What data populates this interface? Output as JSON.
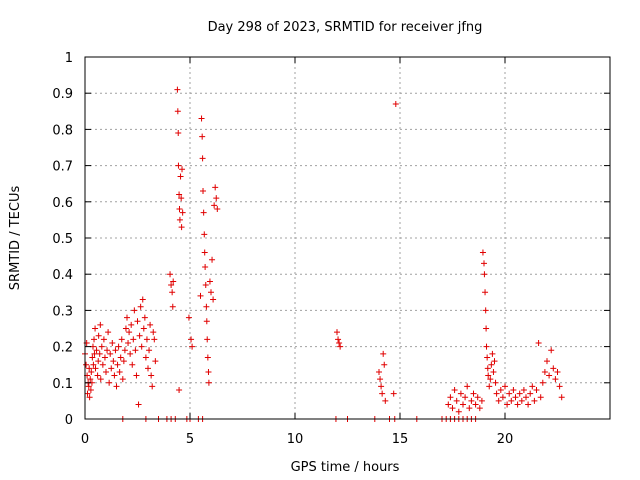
{
  "chart_data": {
    "type": "scatter",
    "title": "Day 298 of 2023, SRMTID for receiver jfng",
    "xlabel": "GPS time / hours",
    "ylabel": "SRMTID / TECUs",
    "xlim": [
      0,
      25
    ],
    "ylim": [
      0,
      1
    ],
    "x_ticks": [
      0,
      5,
      10,
      15,
      20
    ],
    "x_tick_labels": [
      "0",
      "5",
      "10",
      "15",
      "20"
    ],
    "y_ticks": [
      0,
      0.1,
      0.2,
      0.3,
      0.4,
      0.5,
      0.6,
      0.7,
      0.8,
      0.9,
      1
    ],
    "y_tick_labels": [
      "0",
      "0.1",
      "0.2",
      "0.3",
      "0.4",
      "0.5",
      "0.6",
      "0.7",
      "0.8",
      "0.9",
      "1"
    ],
    "grid": true,
    "marker": "+",
    "color": "#e00000",
    "series": [
      {
        "name": "jfng",
        "points": [
          [
            0.0,
            0.18
          ],
          [
            0.05,
            0.15
          ],
          [
            0.08,
            0.21
          ],
          [
            0.1,
            0.12
          ],
          [
            0.12,
            0.07
          ],
          [
            0.15,
            0.1
          ],
          [
            0.18,
            0.09
          ],
          [
            0.2,
            0.14
          ],
          [
            0.22,
            0.06
          ],
          [
            0.25,
            0.11
          ],
          [
            0.28,
            0.08
          ],
          [
            0.3,
            0.13
          ],
          [
            0.33,
            0.1
          ],
          [
            0.35,
            0.17
          ],
          [
            0.38,
            0.2
          ],
          [
            0.4,
            0.15
          ],
          [
            0.43,
            0.22
          ],
          [
            0.45,
            0.18
          ],
          [
            0.48,
            0.25
          ],
          [
            0.5,
            0.14
          ],
          [
            0.55,
            0.19
          ],
          [
            0.6,
            0.12
          ],
          [
            0.63,
            0.16
          ],
          [
            0.65,
            0.23
          ],
          [
            0.7,
            0.18
          ],
          [
            0.73,
            0.26
          ],
          [
            0.75,
            0.11
          ],
          [
            0.8,
            0.2
          ],
          [
            0.85,
            0.15
          ],
          [
            0.9,
            0.22
          ],
          [
            0.95,
            0.17
          ],
          [
            1.0,
            0.13
          ],
          [
            1.05,
            0.19
          ],
          [
            1.1,
            0.24
          ],
          [
            1.15,
            0.1
          ],
          [
            1.2,
            0.18
          ],
          [
            1.25,
            0.14
          ],
          [
            1.3,
            0.21
          ],
          [
            1.35,
            0.16
          ],
          [
            1.4,
            0.12
          ],
          [
            1.45,
            0.19
          ],
          [
            1.5,
            0.09
          ],
          [
            1.55,
            0.15
          ],
          [
            1.6,
            0.2
          ],
          [
            1.65,
            0.13
          ],
          [
            1.7,
            0.17
          ],
          [
            1.75,
            0.22
          ],
          [
            1.8,
            0.11
          ],
          [
            1.85,
            0.16
          ],
          [
            1.9,
            0.19
          ],
          [
            1.95,
            0.25
          ],
          [
            2.0,
            0.28
          ],
          [
            2.05,
            0.21
          ],
          [
            2.1,
            0.24
          ],
          [
            2.15,
            0.18
          ],
          [
            2.2,
            0.26
          ],
          [
            2.25,
            0.15
          ],
          [
            2.3,
            0.22
          ],
          [
            2.35,
            0.3
          ],
          [
            2.4,
            0.19
          ],
          [
            2.45,
            0.12
          ],
          [
            2.5,
            0.27
          ],
          [
            2.55,
            0.04
          ],
          [
            2.6,
            0.23
          ],
          [
            2.65,
            0.31
          ],
          [
            2.7,
            0.2
          ],
          [
            2.75,
            0.33
          ],
          [
            2.8,
            0.25
          ],
          [
            2.85,
            0.28
          ],
          [
            2.9,
            0.17
          ],
          [
            2.95,
            0.22
          ],
          [
            3.0,
            0.14
          ],
          [
            3.05,
            0.19
          ],
          [
            3.1,
            0.26
          ],
          [
            3.15,
            0.12
          ],
          [
            3.2,
            0.09
          ],
          [
            3.25,
            0.24
          ],
          [
            3.3,
            0.22
          ],
          [
            3.35,
            0.16
          ],
          [
            1.8,
            0.0
          ],
          [
            2.9,
            0.0
          ],
          [
            3.5,
            0.0
          ],
          [
            3.9,
            0.0
          ],
          [
            4.1,
            0.0
          ],
          [
            4.3,
            0.0
          ],
          [
            4.85,
            0.0
          ],
          [
            5.0,
            0.0
          ],
          [
            5.4,
            0.0
          ],
          [
            5.6,
            0.0
          ],
          [
            4.05,
            0.4
          ],
          [
            4.1,
            0.37
          ],
          [
            4.15,
            0.35
          ],
          [
            4.18,
            0.31
          ],
          [
            4.2,
            0.38
          ],
          [
            4.4,
            0.91
          ],
          [
            4.42,
            0.85
          ],
          [
            4.44,
            0.79
          ],
          [
            4.45,
            0.7
          ],
          [
            4.48,
            0.62
          ],
          [
            4.5,
            0.58
          ],
          [
            4.52,
            0.55
          ],
          [
            4.55,
            0.67
          ],
          [
            4.58,
            0.61
          ],
          [
            4.6,
            0.53
          ],
          [
            4.62,
            0.69
          ],
          [
            4.65,
            0.57
          ],
          [
            4.48,
            0.08
          ],
          [
            4.95,
            0.28
          ],
          [
            5.05,
            0.22
          ],
          [
            5.1,
            0.2
          ],
          [
            5.5,
            0.34
          ],
          [
            5.55,
            0.83
          ],
          [
            5.58,
            0.78
          ],
          [
            5.6,
            0.72
          ],
          [
            5.62,
            0.63
          ],
          [
            5.65,
            0.57
          ],
          [
            5.68,
            0.51
          ],
          [
            5.7,
            0.46
          ],
          [
            5.72,
            0.42
          ],
          [
            5.75,
            0.37
          ],
          [
            5.78,
            0.31
          ],
          [
            5.8,
            0.27
          ],
          [
            5.82,
            0.22
          ],
          [
            5.85,
            0.17
          ],
          [
            5.88,
            0.13
          ],
          [
            5.9,
            0.1
          ],
          [
            5.95,
            0.38
          ],
          [
            6.0,
            0.35
          ],
          [
            6.05,
            0.44
          ],
          [
            6.1,
            0.33
          ],
          [
            6.15,
            0.59
          ],
          [
            6.2,
            0.64
          ],
          [
            6.25,
            0.61
          ],
          [
            6.3,
            0.58
          ],
          [
            12.0,
            0.24
          ],
          [
            12.05,
            0.22
          ],
          [
            12.1,
            0.21
          ],
          [
            12.15,
            0.2
          ],
          [
            11.95,
            0.0
          ],
          [
            12.5,
            0.0
          ],
          [
            14.0,
            0.13
          ],
          [
            14.05,
            0.11
          ],
          [
            14.1,
            0.09
          ],
          [
            14.15,
            0.07
          ],
          [
            14.2,
            0.18
          ],
          [
            14.25,
            0.15
          ],
          [
            14.3,
            0.05
          ],
          [
            14.7,
            0.07
          ],
          [
            14.8,
            0.87
          ],
          [
            13.8,
            0.0
          ],
          [
            14.5,
            0.0
          ],
          [
            14.75,
            0.0
          ],
          [
            15.8,
            0.0
          ],
          [
            17.0,
            0.0
          ],
          [
            17.2,
            0.0
          ],
          [
            17.4,
            0.0
          ],
          [
            17.6,
            0.0
          ],
          [
            17.8,
            0.0
          ],
          [
            18.0,
            0.0
          ],
          [
            18.2,
            0.0
          ],
          [
            18.4,
            0.0
          ],
          [
            18.6,
            0.0
          ],
          [
            17.3,
            0.04
          ],
          [
            17.4,
            0.06
          ],
          [
            17.5,
            0.03
          ],
          [
            17.6,
            0.08
          ],
          [
            17.7,
            0.05
          ],
          [
            17.8,
            0.02
          ],
          [
            17.9,
            0.07
          ],
          [
            18.0,
            0.04
          ],
          [
            18.1,
            0.06
          ],
          [
            18.2,
            0.09
          ],
          [
            18.3,
            0.03
          ],
          [
            18.4,
            0.05
          ],
          [
            18.5,
            0.07
          ],
          [
            18.6,
            0.04
          ],
          [
            18.7,
            0.06
          ],
          [
            18.8,
            0.03
          ],
          [
            18.9,
            0.05
          ],
          [
            18.95,
            0.46
          ],
          [
            19.0,
            0.43
          ],
          [
            19.02,
            0.4
          ],
          [
            19.05,
            0.35
          ],
          [
            19.08,
            0.3
          ],
          [
            19.1,
            0.25
          ],
          [
            19.12,
            0.2
          ],
          [
            19.15,
            0.17
          ],
          [
            19.18,
            0.14
          ],
          [
            19.2,
            0.12
          ],
          [
            19.25,
            0.09
          ],
          [
            19.3,
            0.11
          ],
          [
            19.35,
            0.15
          ],
          [
            19.4,
            0.18
          ],
          [
            19.45,
            0.13
          ],
          [
            19.5,
            0.16
          ],
          [
            19.55,
            0.1
          ],
          [
            19.6,
            0.07
          ],
          [
            19.7,
            0.05
          ],
          [
            19.8,
            0.08
          ],
          [
            19.9,
            0.06
          ],
          [
            20.0,
            0.09
          ],
          [
            20.1,
            0.04
          ],
          [
            20.2,
            0.07
          ],
          [
            20.3,
            0.05
          ],
          [
            20.4,
            0.08
          ],
          [
            20.5,
            0.06
          ],
          [
            20.6,
            0.04
          ],
          [
            20.7,
            0.07
          ],
          [
            20.8,
            0.05
          ],
          [
            20.9,
            0.08
          ],
          [
            21.0,
            0.06
          ],
          [
            21.1,
            0.04
          ],
          [
            21.2,
            0.07
          ],
          [
            21.3,
            0.09
          ],
          [
            21.4,
            0.05
          ],
          [
            21.5,
            0.08
          ],
          [
            21.6,
            0.21
          ],
          [
            21.7,
            0.06
          ],
          [
            21.8,
            0.1
          ],
          [
            21.9,
            0.13
          ],
          [
            22.0,
            0.16
          ],
          [
            22.1,
            0.12
          ],
          [
            22.2,
            0.19
          ],
          [
            22.3,
            0.14
          ],
          [
            22.4,
            0.11
          ],
          [
            22.5,
            0.13
          ],
          [
            22.6,
            0.09
          ],
          [
            22.7,
            0.06
          ]
        ]
      }
    ]
  }
}
